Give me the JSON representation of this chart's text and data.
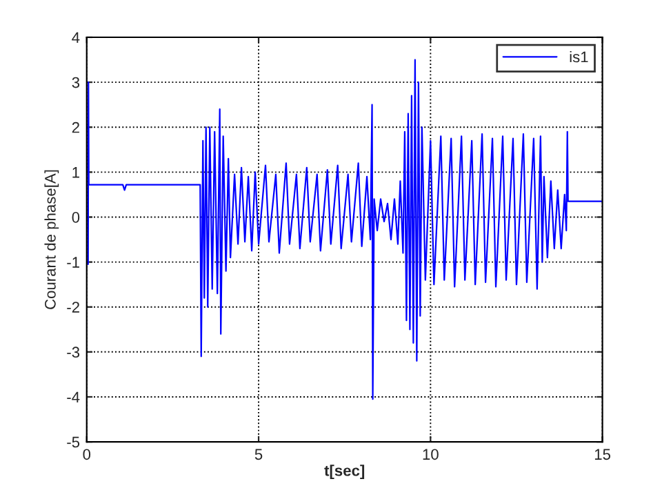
{
  "chart_data": {
    "type": "line",
    "xlabel": "t[sec]",
    "ylabel": "Courant de phase[A]",
    "xlim": [
      0,
      15
    ],
    "xticks": [
      0,
      5,
      10,
      15
    ],
    "ylim": [
      -5,
      4
    ],
    "yticks": [
      -5,
      -4,
      -3,
      -2,
      -1,
      0,
      1,
      2,
      3,
      4
    ],
    "grid": true,
    "legend": "top right",
    "series": [
      {
        "name": "is1",
        "color": "#0000ff",
        "x": [
          0.04,
          0.05,
          0.06,
          1.05,
          1.1,
          1.15,
          3.3,
          3.33,
          3.38,
          3.42,
          3.47,
          3.52,
          3.58,
          3.65,
          3.72,
          3.8,
          3.87,
          3.9,
          3.97,
          4.05,
          4.12,
          4.18,
          4.3,
          4.4,
          4.5,
          4.6,
          4.7,
          4.8,
          4.9,
          5.0,
          5.2,
          5.3,
          5.5,
          5.6,
          5.8,
          5.9,
          6.1,
          6.2,
          6.4,
          6.5,
          6.7,
          6.8,
          7.0,
          7.1,
          7.3,
          7.4,
          7.6,
          7.7,
          7.9,
          8.0,
          8.15,
          8.25,
          8.3,
          8.32,
          8.36,
          8.45,
          8.55,
          8.65,
          8.75,
          8.85,
          8.95,
          9.05,
          9.12,
          9.2,
          9.25,
          9.3,
          9.35,
          9.4,
          9.45,
          9.5,
          9.55,
          9.6,
          9.65,
          9.7,
          9.75,
          9.85,
          10.0,
          10.1,
          10.3,
          10.4,
          10.6,
          10.7,
          10.9,
          11.0,
          11.2,
          11.3,
          11.5,
          11.6,
          11.8,
          11.9,
          12.1,
          12.2,
          12.4,
          12.5,
          12.7,
          12.8,
          13.0,
          13.1,
          13.2,
          13.25,
          13.3,
          13.4,
          13.5,
          13.6,
          13.7,
          13.8,
          13.9,
          13.95,
          13.98,
          14.0,
          15
        ],
        "values": [
          -1.05,
          3.0,
          0.72,
          0.72,
          0.6,
          0.72,
          0.72,
          -3.1,
          1.7,
          -1.8,
          2.0,
          -2.0,
          2.0,
          -1.6,
          1.9,
          -1.7,
          2.4,
          -2.6,
          1.8,
          -1.2,
          1.3,
          -0.9,
          0.95,
          -0.6,
          1.1,
          -0.55,
          0.9,
          -0.75,
          1.0,
          -0.6,
          1.15,
          -0.55,
          0.95,
          -0.8,
          1.2,
          -0.6,
          0.95,
          -0.7,
          1.1,
          -0.55,
          0.95,
          -0.75,
          1.05,
          -0.6,
          1.15,
          -0.7,
          0.95,
          -0.55,
          1.2,
          -0.65,
          0.9,
          -0.5,
          2.5,
          -4.05,
          0.4,
          -0.3,
          0.4,
          -0.1,
          0.3,
          -0.5,
          0.4,
          -0.6,
          0.8,
          -0.8,
          1.9,
          -2.3,
          2.3,
          -2.5,
          2.7,
          -2.8,
          3.5,
          -3.2,
          3.0,
          -2.2,
          2.0,
          -1.4,
          1.7,
          -1.5,
          1.8,
          -1.4,
          1.75,
          -1.55,
          1.8,
          -1.4,
          1.7,
          -1.5,
          1.85,
          -1.45,
          1.75,
          -1.55,
          1.8,
          -1.4,
          1.75,
          -1.5,
          1.85,
          -1.45,
          1.75,
          -1.6,
          1.8,
          -1.0,
          0.9,
          -0.9,
          0.8,
          -0.7,
          0.6,
          -0.7,
          0.5,
          -0.3,
          1.9,
          0.35,
          0.35
        ]
      }
    ]
  }
}
